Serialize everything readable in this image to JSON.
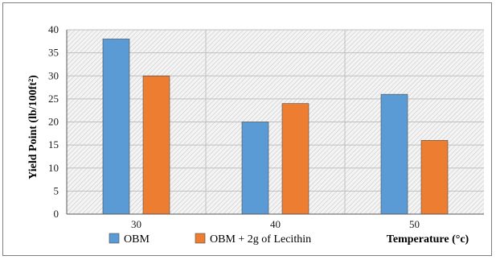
{
  "chart_data": {
    "type": "bar",
    "categories": [
      "30",
      "40",
      "50"
    ],
    "series": [
      {
        "name": "OBM",
        "values": [
          38,
          20,
          26
        ],
        "color": "#5b9bd5"
      },
      {
        "name": "OBM + 2g of Lecithin",
        "values": [
          30,
          24,
          16
        ],
        "color": "#ed7d31"
      }
    ],
    "title": "",
    "ylabel": "Yield Point (lb/100ft²)",
    "xlabel": "Temperature (°c)",
    "ylim": [
      0,
      40
    ],
    "yticks": [
      0,
      5,
      10,
      15,
      20,
      25,
      30,
      35,
      40
    ],
    "grid": true,
    "legend_position": "bottom-left",
    "plot_background": "hatched light gray"
  }
}
